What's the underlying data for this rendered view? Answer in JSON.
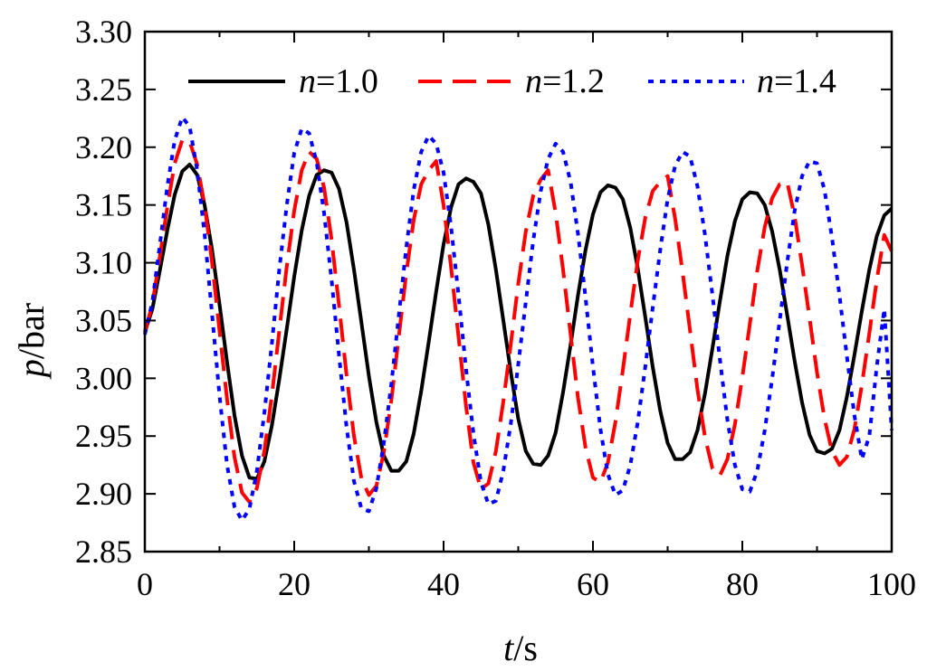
{
  "chart_data": {
    "type": "line",
    "title": "",
    "xlabel": {
      "var": "t",
      "unit": "/s"
    },
    "ylabel": {
      "var": "p",
      "unit": "/bar"
    },
    "xlim": [
      0,
      100
    ],
    "ylim": [
      2.85,
      3.3
    ],
    "xticks": [
      0,
      20,
      40,
      60,
      80,
      100
    ],
    "xtick_labels": [
      "0",
      "20",
      "40",
      "60",
      "80",
      "100"
    ],
    "yticks": [
      2.85,
      2.9,
      2.95,
      3.0,
      3.05,
      3.1,
      3.15,
      3.2,
      3.25,
      3.3
    ],
    "ytick_labels": [
      "2.85",
      "2.90",
      "2.95",
      "3.00",
      "3.05",
      "3.10",
      "3.15",
      "3.20",
      "3.25",
      "3.30"
    ],
    "grid": false,
    "legend": {
      "position": "top",
      "orientation": "horizontal"
    },
    "series": [
      {
        "var": "n",
        "value": "=1.0",
        "color": "#000000",
        "style": "solid",
        "x": [
          0,
          1,
          2,
          3,
          4,
          5,
          6,
          7,
          8,
          9,
          10,
          11,
          12,
          13,
          14,
          15,
          16,
          17,
          18,
          19,
          20,
          21,
          22,
          23,
          24,
          25,
          26,
          27,
          28,
          29,
          30,
          31,
          32,
          33,
          34,
          35,
          36,
          37,
          38,
          39,
          40,
          41,
          42,
          43,
          44,
          45,
          46,
          47,
          48,
          49,
          50,
          51,
          52,
          53,
          54,
          55,
          56,
          57,
          58,
          59,
          60,
          61,
          62,
          63,
          64,
          65,
          66,
          67,
          68,
          69,
          70,
          71,
          72,
          73,
          74,
          75,
          76,
          77,
          78,
          79,
          80,
          81,
          82,
          83,
          84,
          85,
          86,
          87,
          88,
          89,
          90,
          91,
          92,
          93,
          94,
          95,
          96,
          97,
          98,
          99,
          100
        ],
        "y": [
          3.04,
          3.06,
          3.093,
          3.128,
          3.159,
          3.179,
          3.185,
          3.176,
          3.15,
          3.111,
          3.064,
          3.014,
          2.968,
          2.933,
          2.914,
          2.913,
          2.928,
          2.959,
          2.999,
          3.043,
          3.088,
          3.128,
          3.158,
          3.176,
          3.18,
          3.178,
          3.164,
          3.135,
          3.094,
          3.048,
          3.002,
          2.962,
          2.933,
          2.92,
          2.92,
          2.928,
          2.952,
          2.989,
          3.031,
          3.075,
          3.116,
          3.148,
          3.168,
          3.173,
          3.17,
          3.16,
          3.133,
          3.094,
          3.05,
          3.005,
          2.965,
          2.937,
          2.926,
          2.925,
          2.933,
          2.953,
          2.988,
          3.029,
          3.072,
          3.111,
          3.142,
          3.161,
          3.167,
          3.165,
          3.155,
          3.13,
          3.095,
          3.053,
          3.01,
          2.972,
          2.944,
          2.93,
          2.93,
          2.936,
          2.955,
          2.987,
          3.026,
          3.067,
          3.106,
          3.136,
          3.155,
          3.161,
          3.16,
          3.15,
          3.127,
          3.094,
          3.055,
          3.015,
          2.979,
          2.951,
          2.937,
          2.935,
          2.939,
          2.955,
          2.984,
          3.02,
          3.058,
          3.094,
          3.123,
          3.141,
          3.147
        ]
      },
      {
        "var": "n",
        "value": "=1.2",
        "color": "#ff0000",
        "style": "dashed",
        "x": [
          0,
          1,
          2,
          3,
          4,
          5,
          6,
          7,
          8,
          9,
          10,
          11,
          12,
          13,
          14,
          15,
          16,
          17,
          18,
          19,
          20,
          21,
          22,
          23,
          24,
          25,
          26,
          27,
          28,
          29,
          30,
          31,
          32,
          33,
          34,
          35,
          36,
          37,
          38,
          39,
          40,
          41,
          42,
          43,
          44,
          45,
          46,
          47,
          48,
          49,
          50,
          51,
          52,
          53,
          54,
          55,
          56,
          57,
          58,
          59,
          60,
          61,
          62,
          63,
          64,
          65,
          66,
          67,
          68,
          69,
          70,
          71,
          72,
          73,
          74,
          75,
          76,
          77,
          78,
          79,
          80,
          81,
          82,
          83,
          84,
          85,
          86,
          87,
          88,
          89,
          90,
          91,
          92,
          93,
          94,
          95,
          96,
          97,
          98,
          99,
          100
        ],
        "y": [
          3.04,
          3.064,
          3.105,
          3.148,
          3.186,
          3.206,
          3.205,
          3.185,
          3.15,
          3.1,
          3.041,
          2.982,
          2.932,
          2.901,
          2.893,
          2.905,
          2.937,
          2.985,
          3.041,
          3.097,
          3.145,
          3.18,
          3.196,
          3.19,
          3.165,
          3.12,
          3.063,
          3.003,
          2.95,
          2.913,
          2.899,
          2.907,
          2.936,
          2.981,
          3.036,
          3.091,
          3.137,
          3.168,
          3.18,
          3.188,
          3.15,
          3.096,
          3.036,
          2.976,
          2.927,
          2.904,
          2.909,
          2.937,
          2.98,
          3.03,
          3.082,
          3.127,
          3.158,
          3.172,
          3.18,
          3.143,
          3.094,
          3.038,
          2.983,
          2.94,
          2.914,
          2.91,
          2.927,
          2.962,
          3.007,
          3.056,
          3.102,
          3.139,
          3.162,
          3.17,
          3.175,
          3.138,
          3.092,
          3.041,
          2.99,
          2.949,
          2.922,
          2.916,
          2.93,
          2.96,
          3.001,
          3.047,
          3.093,
          3.131,
          3.156,
          3.168,
          3.17,
          3.14,
          3.098,
          3.052,
          3.005,
          2.965,
          2.937,
          2.925,
          2.932,
          2.956,
          2.994,
          3.039,
          3.085,
          3.124,
          3.11
        ]
      },
      {
        "var": "n",
        "value": "=1.4",
        "color": "#0000ff",
        "style": "dotted",
        "x": [
          0,
          1,
          2,
          3,
          4,
          5,
          6,
          7,
          8,
          9,
          10,
          11,
          12,
          13,
          14,
          15,
          16,
          17,
          18,
          19,
          20,
          21,
          22,
          23,
          24,
          25,
          26,
          27,
          28,
          29,
          30,
          31,
          32,
          33,
          34,
          35,
          36,
          37,
          38,
          39,
          40,
          41,
          42,
          43,
          44,
          45,
          46,
          47,
          48,
          49,
          50,
          51,
          52,
          53,
          54,
          55,
          56,
          57,
          58,
          59,
          60,
          61,
          62,
          63,
          64,
          65,
          66,
          67,
          68,
          69,
          70,
          71,
          72,
          73,
          74,
          75,
          76,
          77,
          78,
          79,
          80,
          81,
          82,
          83,
          84,
          85,
          86,
          87,
          88,
          89,
          90,
          91,
          92,
          93,
          94,
          95,
          96,
          97,
          98,
          99,
          100
        ],
        "y": [
          3.038,
          3.066,
          3.115,
          3.166,
          3.206,
          3.226,
          3.218,
          3.18,
          3.125,
          3.055,
          2.985,
          2.925,
          2.889,
          2.877,
          2.887,
          2.92,
          2.97,
          3.03,
          3.094,
          3.15,
          3.195,
          3.216,
          3.212,
          3.187,
          3.143,
          3.085,
          3.02,
          2.958,
          2.911,
          2.887,
          2.885,
          2.905,
          2.944,
          2.995,
          3.054,
          3.113,
          3.163,
          3.196,
          3.21,
          3.203,
          3.178,
          3.131,
          3.072,
          3.008,
          2.952,
          2.91,
          2.891,
          2.894,
          2.92,
          2.961,
          3.012,
          3.066,
          3.119,
          3.162,
          3.19,
          3.203,
          3.196,
          3.17,
          3.125,
          3.07,
          3.01,
          2.956,
          2.917,
          2.899,
          2.903,
          2.925,
          2.962,
          3.01,
          3.061,
          3.111,
          3.155,
          3.184,
          3.196,
          3.192,
          3.166,
          3.124,
          3.072,
          3.016,
          2.964,
          2.925,
          2.904,
          2.902,
          2.92,
          2.955,
          3.0,
          3.05,
          3.1,
          3.145,
          3.175,
          3.188,
          3.186,
          3.163,
          3.122,
          3.072,
          3.019,
          2.968,
          2.93,
          2.95,
          3.01,
          3.06,
          2.955
        ]
      }
    ]
  }
}
